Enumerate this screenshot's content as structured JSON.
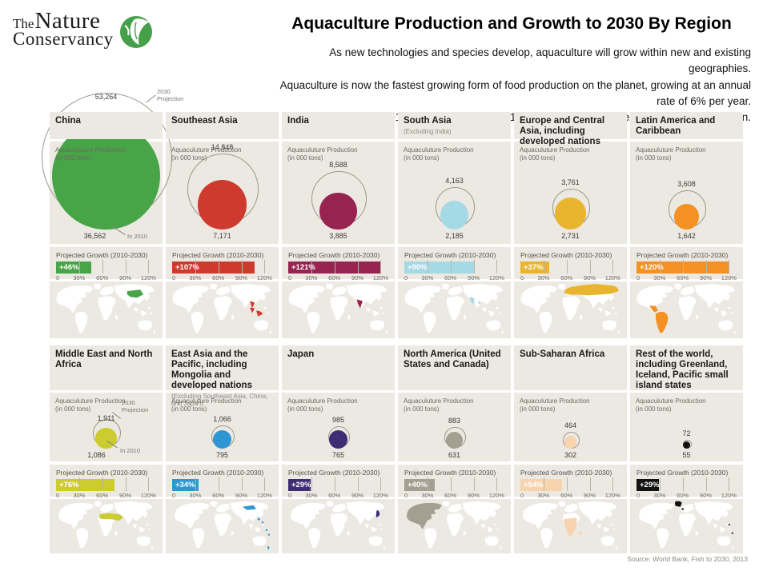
{
  "logo": {
    "line1": "The",
    "line2": "Nature",
    "line3": "Conservancy",
    "green": "#45A049"
  },
  "header": {
    "title": "Aquaculture Production and Growth to 2030 By Region",
    "subtitle_lines": [
      "As new technologies and species develop, aquaculture will grow within new and existing geographies.",
      "Aquaculture is now the fastest growing form of food production on the planet, growing at an annual rate of 6% per year.",
      "In 2012, aquaculture was a $144 billion industry that exceeded beef production."
    ]
  },
  "labels": {
    "production": "Aquaculuture Production",
    "production_sub": "(in 000 tons)",
    "growth": "Projected Growth (2010-2030)",
    "axis_ticks": [
      "0",
      "30%",
      "60%",
      "90%",
      "120%"
    ],
    "projection_line1": "2030",
    "projection_line2": "Projection",
    "in_2010": "In 2010"
  },
  "source": "Source:  World Bank, Fish to 2030, 2013",
  "chart_data": {
    "type": "bubble",
    "title": "Aquaculture Production and Growth to 2030 By Region",
    "units": "thousand tons",
    "bubble_meaning": {
      "outline_circle": "2030 Projection",
      "filled_circle": "In 2010"
    },
    "growth_axis": {
      "min": 0,
      "max": 130,
      "ticks_pct": [
        0,
        30,
        60,
        90,
        120
      ]
    },
    "regions": [
      {
        "row": 1,
        "map": "china",
        "name": "China",
        "subtitle": "",
        "value_2010": 36562,
        "value_2030": 53264,
        "label_2010": "36,562",
        "label_2030": "53,264",
        "growth_pct": 46,
        "growth_label": "+46%",
        "color": "#47A447",
        "notes": true
      },
      {
        "row": 1,
        "map": "southeastasia",
        "name": "Southeast Asia",
        "subtitle": "",
        "value_2010": 7171,
        "value_2030": 14848,
        "label_2010": "7,171",
        "label_2030": "14,848",
        "growth_pct": 107,
        "growth_label": "+107%",
        "color": "#CE3A2E",
        "notes": false
      },
      {
        "row": 1,
        "map": "india",
        "name": "India",
        "subtitle": "",
        "value_2010": 3885,
        "value_2030": 8588,
        "label_2010": "3,885",
        "label_2030": "8,588",
        "growth_pct": 121,
        "growth_label": "+121%",
        "color": "#962350",
        "notes": false
      },
      {
        "row": 1,
        "map": "southasia",
        "name": "South Asia",
        "subtitle": "(Excluding India)",
        "value_2010": 2185,
        "value_2030": 4163,
        "label_2010": "2,185",
        "label_2030": "4,163",
        "growth_pct": 90,
        "growth_label": "+90%",
        "color": "#A6D9E6",
        "notes": false
      },
      {
        "row": 1,
        "map": "europecentral",
        "name": "Europe and Central Asia, including developed nations",
        "subtitle": "",
        "value_2010": 2731,
        "value_2030": 3761,
        "label_2010": "2,731",
        "label_2030": "3,761",
        "growth_pct": 37,
        "growth_label": "+37%",
        "color": "#E9B52F",
        "notes": false
      },
      {
        "row": 1,
        "map": "latinamerica",
        "name": "Latin America and Caribbean",
        "subtitle": "",
        "value_2010": 1642,
        "value_2030": 3608,
        "label_2010": "1,642",
        "label_2030": "3,608",
        "growth_pct": 120,
        "growth_label": "+120%",
        "color": "#F39122",
        "notes": false
      },
      {
        "row": 2,
        "map": "mena",
        "name": "Middle East and North Africa",
        "subtitle": "",
        "value_2010": 1086,
        "value_2030": 1911,
        "label_2010": "1,086",
        "label_2030": "1,911",
        "growth_pct": 76,
        "growth_label": "+76%",
        "color": "#CCCB2F",
        "notes": true
      },
      {
        "row": 2,
        "map": "eastasiapacific",
        "name": "East Asia and the Pacific, including Mongolia and developed nations",
        "subtitle": "(Excluding Southeast Asia, China, and Japan)",
        "value_2010": 795,
        "value_2030": 1066,
        "label_2010": "795",
        "label_2030": "1,066",
        "growth_pct": 34,
        "growth_label": "+34%",
        "color": "#2E96D2",
        "notes": false
      },
      {
        "row": 2,
        "map": "japan",
        "name": "Japan",
        "subtitle": "",
        "value_2010": 765,
        "value_2030": 985,
        "label_2010": "765",
        "label_2030": "985",
        "growth_pct": 29,
        "growth_label": "+29%",
        "color": "#3F2D73",
        "notes": false
      },
      {
        "row": 2,
        "map": "northamerica",
        "name": "North America (United States and Canada)",
        "subtitle": "",
        "value_2010": 631,
        "value_2030": 883,
        "label_2010": "631",
        "label_2030": "883",
        "growth_pct": 40,
        "growth_label": "+40%",
        "color": "#A4A091",
        "notes": false
      },
      {
        "row": 2,
        "map": "subsaharan",
        "name": "Sub-Saharan Africa",
        "subtitle": "",
        "value_2010": 302,
        "value_2030": 464,
        "label_2010": "302",
        "label_2030": "464",
        "growth_pct": 54,
        "growth_label": "+54%",
        "color": "#F7D3AE",
        "notes": false
      },
      {
        "row": 2,
        "map": "restworld",
        "name": "Rest of the world, including Greenland, Iceland, Pacific small island states",
        "subtitle": "",
        "value_2010": 55,
        "value_2030": 72,
        "label_2010": "55",
        "label_2030": "72",
        "growth_pct": 29,
        "growth_label": "+29%",
        "color": "#121212",
        "notes": false
      }
    ]
  }
}
